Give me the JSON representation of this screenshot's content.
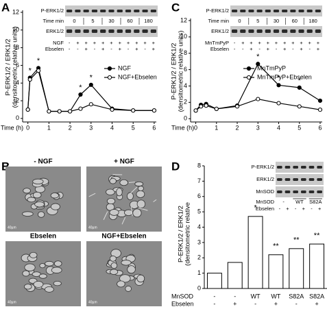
{
  "panel_labels": [
    "A",
    "B",
    "C",
    "D"
  ],
  "micrographs": {
    "labels": [
      "- NGF",
      "+ NGF",
      "Ebselen",
      "NGF+Ebselen"
    ],
    "scale": "40µm"
  },
  "chart_data": [
    {
      "type": "line",
      "y_label": [
        "P-ERK1/2 / ERK1/2",
        "(densitometric relative units)"
      ],
      "x_label": "Time (h)",
      "xlim": [
        -0.25,
        6.1
      ],
      "xticks": [
        0,
        1,
        2,
        3,
        4,
        5,
        6
      ],
      "ylim": [
        -0.4,
        12
      ],
      "yticks": [
        0,
        2,
        4,
        6,
        8,
        10,
        12
      ],
      "series": [
        {
          "name": "NGF",
          "color": "#000000",
          "marker": "filled",
          "x": [
            0,
            0.1,
            0.5,
            1,
            1.5,
            2,
            2.5,
            3,
            4,
            5,
            6
          ],
          "values": [
            1.0,
            4.6,
            5.7,
            0.8,
            0.8,
            0.8,
            2.7,
            3.8,
            1.1,
            0.9,
            0.9
          ]
        },
        {
          "name": "NGF+Ebselen",
          "color": "#000000",
          "marker": "open",
          "x": [
            0,
            0.1,
            0.5,
            1,
            1.5,
            2,
            2.5,
            3,
            4,
            5,
            6
          ],
          "values": [
            1.0,
            4.4,
            5.4,
            0.8,
            0.8,
            0.8,
            1.1,
            1.6,
            1.0,
            0.9,
            0.9
          ]
        }
      ],
      "annotations": [
        {
          "text": "*",
          "series": 0,
          "index": 1
        },
        {
          "text": "*",
          "series": 0,
          "index": 2
        },
        {
          "text": "*",
          "series": 0,
          "index": 6
        },
        {
          "text": "*",
          "series": 0,
          "index": 7
        }
      ],
      "blot": {
        "rows": [
          "P-ERK1/2",
          "ERK1/2"
        ],
        "time_label": "Time min",
        "times": [
          0,
          5,
          30,
          60,
          180
        ]
      },
      "treatments": [
        {
          "label": "NGF",
          "signs": [
            "-",
            "+",
            "+",
            "+",
            "+",
            "+",
            "+",
            "+",
            "+",
            "+",
            "+"
          ]
        },
        {
          "label": "Ebselen",
          "signs": [
            "-",
            "-",
            "+",
            "-",
            "+",
            "-",
            "+",
            "-",
            "+",
            "-",
            "+"
          ]
        }
      ]
    },
    {
      "type": "line",
      "y_label": [
        "P-ERK1/2 / ERK1/2",
        "(densitometric relative units)"
      ],
      "x_label": "Time (h)",
      "xlim": [
        -0.25,
        6.1
      ],
      "xticks": [
        0,
        1,
        2,
        3,
        4,
        5,
        6
      ],
      "ylim": [
        -0.4,
        12
      ],
      "yticks": [
        0,
        2,
        4,
        6,
        8,
        10,
        12
      ],
      "series": [
        {
          "name": "MnTmPyP",
          "color": "#000000",
          "marker": "filled",
          "x": [
            0,
            0.25,
            0.5,
            1,
            2,
            3,
            4,
            5,
            6
          ],
          "values": [
            1.0,
            1.7,
            1.8,
            1.2,
            1.6,
            6.7,
            4.1,
            3.8,
            2.2
          ]
        },
        {
          "name": "MnTmPyP+Ebselen",
          "color": "#000000",
          "marker": "open",
          "x": [
            0,
            0.25,
            0.5,
            1,
            2,
            3,
            4,
            5,
            6
          ],
          "values": [
            1.0,
            1.5,
            1.6,
            1.2,
            1.5,
            2.4,
            1.9,
            1.5,
            1.1
          ]
        }
      ],
      "annotations": [
        {
          "text": "*",
          "series": 0,
          "index": 5
        },
        {
          "text": "*",
          "series": 0,
          "index": 6
        },
        {
          "text": "*",
          "series": 0,
          "index": 7
        }
      ],
      "blot": {
        "rows": [
          "P-ERK1/2",
          "ERK1/2"
        ],
        "time_label": "Time min",
        "times": [
          0,
          5,
          30,
          60,
          180
        ]
      },
      "treatments": [
        {
          "label": "MnTmPyP",
          "signs": [
            "-",
            "+",
            "+",
            "+",
            "+",
            "+",
            "+",
            "+",
            "+",
            "+",
            "+"
          ]
        },
        {
          "label": "Ebselen",
          "signs": [
            "-",
            "-",
            "+",
            "-",
            "+",
            "-",
            "+",
            "-",
            "+",
            "-",
            "+"
          ]
        }
      ]
    },
    {
      "type": "bar",
      "y_label": [
        "P-ERK1/2 / ERK1/2",
        "(densitometric relative"
      ],
      "ylim": [
        0,
        8
      ],
      "yticks": [
        0,
        1,
        2,
        3,
        4,
        5,
        6,
        7,
        8
      ],
      "values": [
        1.0,
        1.7,
        4.7,
        2.2,
        2.6,
        2.9
      ],
      "color": "#ffffff",
      "category_rows": [
        {
          "label": "MnSOD",
          "values": [
            "-",
            "-",
            "WT",
            "WT",
            "S82A",
            "S82A"
          ]
        },
        {
          "label": "Ebselen",
          "values": [
            "-",
            "+",
            "-",
            "+",
            "-",
            "+"
          ]
        }
      ],
      "annotations": [
        {
          "text": "*",
          "index": 2
        },
        {
          "text": "**",
          "index": 3
        },
        {
          "text": "**",
          "index": 4
        },
        {
          "text": "**",
          "index": 5
        }
      ],
      "blot": {
        "rows": [
          "P-ERK1/2",
          "ERK1/2",
          "MnSOD"
        ]
      },
      "blot_treatments": [
        {
          "label": "MnSOD",
          "groups": [
            "-",
            "WT",
            "S82A"
          ]
        },
        {
          "label": "Ebselen",
          "signs": [
            "-",
            "+",
            "-",
            "+",
            "-",
            "+"
          ]
        }
      ]
    }
  ]
}
